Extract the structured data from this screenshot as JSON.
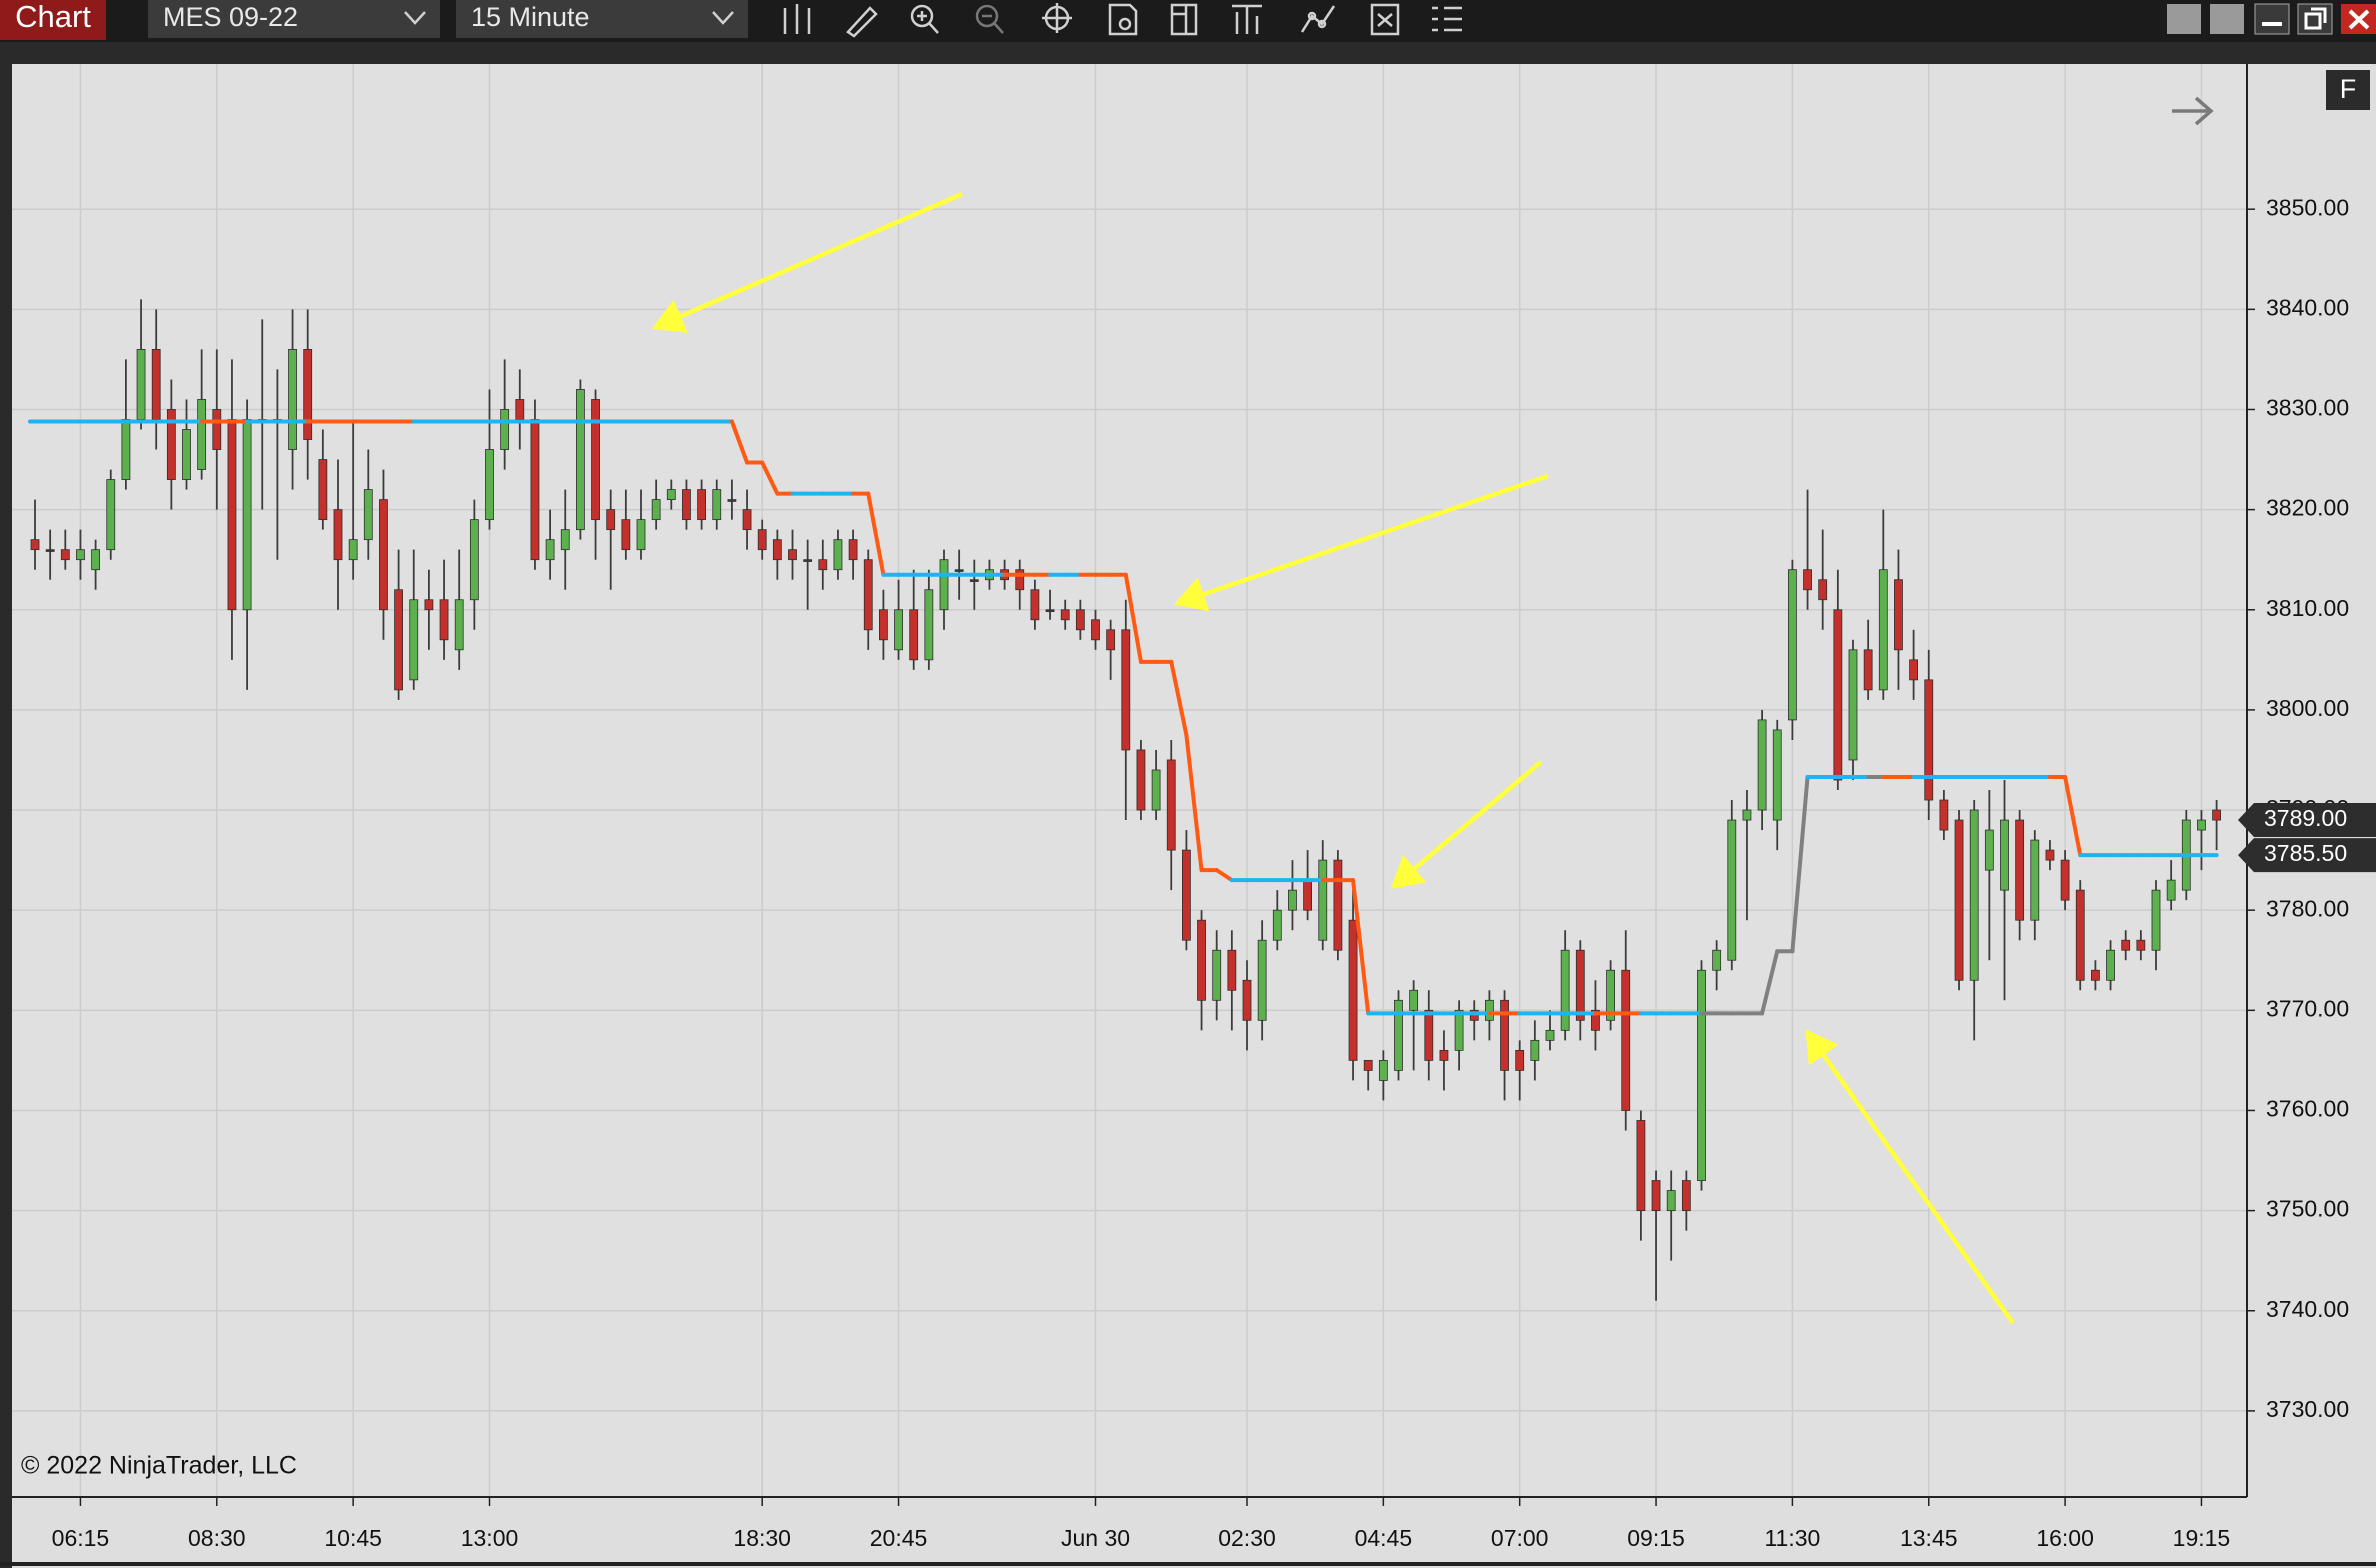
{
  "toolbar": {
    "tab": "Chart",
    "instrument": "MES 09-22",
    "interval": "15 Minute"
  },
  "controls": {
    "panel_button": "F"
  },
  "chart_data": {
    "type": "candlestick",
    "watermark": "© 2022 NinjaTrader, LLC",
    "up_color": "#5cb14e",
    "down_color": "#c4312c",
    "wick_color": "#3c3c3c",
    "grid": true,
    "ylim": [
      3721.4,
      3864.5
    ],
    "yticks": [
      {
        "value": 3730,
        "label": "3730.00"
      },
      {
        "value": 3740,
        "label": "3740.00"
      },
      {
        "value": 3750,
        "label": "3750.00"
      },
      {
        "value": 3760,
        "label": "3760.00"
      },
      {
        "value": 3770,
        "label": "3770.00"
      },
      {
        "value": 3780,
        "label": "3780.00"
      },
      {
        "value": 3790,
        "label": "3790.00"
      },
      {
        "value": 3800,
        "label": "3800.00"
      },
      {
        "value": 3810,
        "label": "3810.00"
      },
      {
        "value": 3820,
        "label": "3820.00"
      },
      {
        "value": 3830,
        "label": "3830.00"
      },
      {
        "value": 3840,
        "label": "3840.00"
      },
      {
        "value": 3850,
        "label": "3850.00"
      }
    ],
    "categories": [
      null,
      null,
      null,
      "06:15",
      null,
      null,
      null,
      null,
      null,
      null,
      null,
      null,
      "08:30",
      null,
      null,
      null,
      null,
      null,
      null,
      null,
      null,
      "10:45",
      null,
      null,
      null,
      null,
      null,
      null,
      null,
      null,
      "13:00",
      null,
      null,
      null,
      null,
      null,
      null,
      null,
      null,
      null,
      null,
      null,
      null,
      null,
      null,
      null,
      null,
      null,
      "18:30",
      null,
      null,
      null,
      null,
      null,
      null,
      null,
      null,
      "20:45",
      null,
      null,
      null,
      null,
      null,
      null,
      null,
      null,
      null,
      null,
      null,
      null,
      "Jun 30",
      null,
      null,
      null,
      null,
      null,
      null,
      null,
      null,
      null,
      "02:30",
      null,
      null,
      null,
      null,
      null,
      null,
      null,
      null,
      "04:45",
      null,
      null,
      null,
      null,
      null,
      null,
      null,
      null,
      "07:00",
      null,
      null,
      null,
      null,
      null,
      null,
      null,
      null,
      "09:15",
      null,
      null,
      null,
      null,
      null,
      null,
      null,
      null,
      "11:30",
      null,
      null,
      null,
      null,
      null,
      null,
      null,
      null,
      "13:45",
      null,
      null,
      null,
      null,
      null,
      null,
      null,
      null,
      "16:00",
      null,
      null,
      null,
      null,
      null,
      null,
      null,
      null,
      "19:15",
      null
    ],
    "open": [
      3817,
      3816,
      3816,
      3815,
      3814,
      3816,
      3823,
      3829,
      3836,
      3830,
      3823,
      3824,
      3830,
      3829,
      3810,
      3829,
      3829,
      3826,
      3836,
      3825,
      3820,
      3815,
      3817,
      3821,
      3812,
      3803,
      3811,
      3811,
      3806,
      3811,
      3819,
      3826,
      3831,
      3829,
      3815,
      3816,
      3818,
      3831,
      3820,
      3819,
      3816,
      3819,
      3821,
      3822,
      3822,
      3819,
      3821,
      3820,
      3818,
      3817,
      3816,
      3815,
      3815,
      3814,
      3817,
      3815,
      3810,
      3806,
      3810,
      3805,
      3810,
      3814,
      3813,
      3813,
      3814,
      3814,
      3812,
      3810,
      3810,
      3810,
      3809,
      3808,
      3808,
      3796,
      3790,
      3795,
      3786,
      3779,
      3771,
      3776,
      3773,
      3769,
      3777,
      3780,
      3783,
      3777,
      3785,
      3779,
      3765,
      3763,
      3764,
      3770,
      3770,
      3766,
      3766,
      3770,
      3769,
      3771,
      3766,
      3765,
      3767,
      3768,
      3776,
      3770,
      3769,
      3774,
      3759,
      3753,
      3750,
      3753,
      3753,
      3774,
      3775,
      3789,
      3790,
      3789,
      3799,
      3814,
      3813,
      3810,
      3795,
      3806,
      3802,
      3813,
      3805,
      3803,
      3791,
      3789,
      3773,
      3784,
      3782,
      3789,
      3779,
      3786,
      3785,
      3782,
      3774,
      3773,
      3777,
      3777,
      3776,
      3781,
      3782,
      3788,
      3790
    ],
    "high": [
      3821,
      3818,
      3818,
      3818,
      3817,
      3824,
      3835,
      3841,
      3840,
      3833,
      3831,
      3836,
      3836,
      3835,
      3831,
      3839,
      3834,
      3840,
      3840,
      3828,
      3825,
      3829,
      3826,
      3824,
      3816,
      3816,
      3814,
      3815,
      3816,
      3821,
      3832,
      3835,
      3834,
      3831,
      3820,
      3822,
      3833,
      3832,
      3822,
      3822,
      3822,
      3823,
      3823,
      3823,
      3823,
      3823,
      3823,
      3822,
      3819,
      3818,
      3818,
      3817,
      3817,
      3818,
      3818,
      3816,
      3812,
      3813,
      3814,
      3814,
      3816,
      3816,
      3815,
      3815,
      3815,
      3815,
      3813,
      3812,
      3811,
      3811,
      3810,
      3809,
      3811,
      3797,
      3796,
      3797,
      3788,
      3780,
      3778,
      3778,
      3775,
      3779,
      3782,
      3785,
      3786,
      3787,
      3786,
      3782,
      3765,
      3766,
      3772,
      3773,
      3772,
      3768,
      3771,
      3771,
      3772,
      3772,
      3767,
      3769,
      3770,
      3778,
      3777,
      3773,
      3775,
      3778,
      3760,
      3754,
      3754,
      3754,
      3775,
      3777,
      3791,
      3792,
      3800,
      3799,
      3815,
      3822,
      3818,
      3814,
      3807,
      3809,
      3820,
      3816,
      3808,
      3806,
      3792,
      3790,
      3791,
      3792,
      3793,
      3790,
      3788,
      3787,
      3786,
      3783,
      3775,
      3777,
      3778,
      3778,
      3783,
      3785,
      3790,
      3790,
      3791
    ],
    "low": [
      3814,
      3813,
      3814,
      3813,
      3812,
      3815,
      3822,
      3828,
      3826,
      3820,
      3822,
      3823,
      3820,
      3805,
      3802,
      3820,
      3815,
      3822,
      3823,
      3818,
      3810,
      3813,
      3815,
      3807,
      3801,
      3802,
      3806,
      3805,
      3804,
      3808,
      3818,
      3824,
      3826,
      3814,
      3813,
      3812,
      3817,
      3815,
      3812,
      3815,
      3815,
      3818,
      3820,
      3818,
      3818,
      3818,
      3819,
      3816,
      3815,
      3813,
      3813,
      3810,
      3812,
      3813,
      3813,
      3806,
      3805,
      3805,
      3804,
      3804,
      3808,
      3811,
      3810,
      3812,
      3812,
      3810,
      3808,
      3809,
      3808,
      3807,
      3806,
      3803,
      3789,
      3789,
      3789,
      3782,
      3776,
      3768,
      3769,
      3768,
      3766,
      3767,
      3776,
      3778,
      3779,
      3776,
      3775,
      3763,
      3762,
      3761,
      3763,
      3764,
      3763,
      3762,
      3764,
      3767,
      3767,
      3761,
      3761,
      3763,
      3766,
      3767,
      3767,
      3766,
      3768,
      3758,
      3747,
      3741,
      3745,
      3748,
      3752,
      3772,
      3774,
      3779,
      3788,
      3786,
      3797,
      3810,
      3808,
      3792,
      3793,
      3801,
      3801,
      3802,
      3801,
      3789,
      3787,
      3772,
      3767,
      3775,
      3771,
      3777,
      3777,
      3784,
      3780,
      3772,
      3772,
      3772,
      3775,
      3775,
      3774,
      3780,
      3781,
      3784,
      3786
    ],
    "close": [
      3816,
      3816,
      3815,
      3816,
      3816,
      3823,
      3829,
      3836,
      3829,
      3823,
      3828,
      3831,
      3826,
      3810,
      3829,
      3829,
      3829,
      3836,
      3827,
      3819,
      3815,
      3817,
      3822,
      3810,
      3802,
      3811,
      3810,
      3807,
      3811,
      3819,
      3826,
      3830,
      3829,
      3815,
      3817,
      3818,
      3832,
      3819,
      3818,
      3816,
      3819,
      3821,
      3822,
      3819,
      3819,
      3822,
      3821,
      3818,
      3816,
      3815,
      3815,
      3815,
      3814,
      3817,
      3815,
      3808,
      3807,
      3810,
      3805,
      3812,
      3815,
      3814,
      3813,
      3814,
      3813,
      3812,
      3809,
      3810,
      3809,
      3808,
      3807,
      3806,
      3796,
      3790,
      3794,
      3786,
      3777,
      3771,
      3776,
      3772,
      3769,
      3777,
      3780,
      3782,
      3780,
      3785,
      3776,
      3765,
      3764,
      3765,
      3771,
      3772,
      3765,
      3765,
      3770,
      3769,
      3771,
      3764,
      3764,
      3767,
      3768,
      3776,
      3769,
      3768,
      3774,
      3760,
      3750,
      3750,
      3752,
      3750,
      3774,
      3776,
      3789,
      3790,
      3799,
      3798,
      3814,
      3812,
      3811,
      3793,
      3806,
      3802,
      3814,
      3806,
      3803,
      3791,
      3788,
      3773,
      3790,
      3788,
      3789,
      3779,
      3787,
      3785,
      3781,
      3773,
      3773,
      3776,
      3776,
      3776,
      3782,
      3783,
      3789,
      3789,
      3789
    ],
    "indicator": {
      "values": [
        3828.8,
        3828.8,
        3828.8,
        3828.8,
        3828.8,
        3828.8,
        3828.8,
        3828.8,
        3828.8,
        3828.8,
        3828.8,
        3828.8,
        3828.8,
        3828.8,
        3828.8,
        3828.8,
        3828.8,
        3828.8,
        3828.8,
        3828.8,
        3828.8,
        3828.8,
        3828.8,
        3828.8,
        3828.8,
        3828.8,
        3828.8,
        3828.8,
        3828.8,
        3828.8,
        3828.8,
        3828.8,
        3828.8,
        3828.8,
        3828.8,
        3828.8,
        3828.8,
        3828.8,
        3828.8,
        3828.8,
        3828.8,
        3828.8,
        3828.8,
        3828.8,
        3828.8,
        3828.8,
        3828.8,
        3824.7,
        3824.7,
        3821.6,
        3821.6,
        3821.6,
        3821.6,
        3821.6,
        3821.6,
        3821.6,
        3813.5,
        3813.5,
        3813.5,
        3813.5,
        3813.5,
        3813.5,
        3813.5,
        3813.5,
        3813.5,
        3813.5,
        3813.5,
        3813.5,
        3813.5,
        3813.5,
        3813.5,
        3813.5,
        3813.5,
        3804.8,
        3804.8,
        3804.8,
        3797.5,
        3784,
        3784,
        3783,
        3783,
        3783,
        3783,
        3783,
        3783,
        3783,
        3783,
        3783,
        3769.7,
        3769.7,
        3769.7,
        3769.7,
        3769.7,
        3769.7,
        3769.7,
        3769.7,
        3769.7,
        3769.7,
        3769.7,
        3769.7,
        3769.7,
        3769.7,
        3769.7,
        3769.7,
        3769.7,
        3769.7,
        3769.7,
        3769.7,
        3769.7,
        3769.7,
        3769.7,
        3769.7,
        3769.7,
        3769.7,
        3769.7,
        3775.9,
        3775.9,
        3793.3,
        3793.3,
        3793.3,
        3793.3,
        3793.3,
        3793.3,
        3793.3,
        3793.3,
        3793.3,
        3793.3,
        3793.3,
        3793.3,
        3793.3,
        3793.3,
        3793.3,
        3793.3,
        3793.3,
        3793.3,
        3785.5,
        3785.5,
        3785.5,
        3785.5,
        3785.5,
        3785.5,
        3785.5,
        3785.5,
        3785.5,
        3785.5
      ],
      "colors": [
        "#1eb4f0",
        "#1eb4f0",
        "#1eb4f0",
        "#1eb4f0",
        "#1eb4f0",
        "#1eb4f0",
        "#1eb4f0",
        "#1eb4f0",
        "#1eb4f0",
        "#1eb4f0",
        "#1eb4f0",
        "#1eb4f0",
        "#ff5a14",
        "#ff5a14",
        "#ff5a14",
        "#1eb4f0",
        "#1eb4f0",
        "#1eb4f0",
        "#1eb4f0",
        "#ff5a14",
        "#ff5a14",
        "#ff5a14",
        "#ff5a14",
        "#ff5a14",
        "#ff5a14",
        "#ff5a14",
        "#1eb4f0",
        "#1eb4f0",
        "#1eb4f0",
        "#1eb4f0",
        "#1eb4f0",
        "#1eb4f0",
        "#1eb4f0",
        "#1eb4f0",
        "#1eb4f0",
        "#1eb4f0",
        "#1eb4f0",
        "#1eb4f0",
        "#1eb4f0",
        "#1eb4f0",
        "#1eb4f0",
        "#1eb4f0",
        "#1eb4f0",
        "#1eb4f0",
        "#1eb4f0",
        "#1eb4f0",
        "#1eb4f0",
        "#ff5a14",
        "#ff5a14",
        "#ff5a14",
        "#ff5a14",
        "#1eb4f0",
        "#1eb4f0",
        "#1eb4f0",
        "#1eb4f0",
        "#ff5a14",
        "#ff5a14",
        "#1eb4f0",
        "#1eb4f0",
        "#1eb4f0",
        "#1eb4f0",
        "#1eb4f0",
        "#1eb4f0",
        "#1eb4f0",
        "#1eb4f0",
        "#ff5a14",
        "#ff5a14",
        "#ff5a14",
        "#1eb4f0",
        "#1eb4f0",
        "#ff5a14",
        "#ff5a14",
        "#ff5a14",
        "#ff5a14",
        "#ff5a14",
        "#ff5a14",
        "#ff5a14",
        "#ff5a14",
        "#ff5a14",
        "#ff5a14",
        "#1eb4f0",
        "#1eb4f0",
        "#1eb4f0",
        "#1eb4f0",
        "#1eb4f0",
        "#1eb4f0",
        "#ff5a14",
        "#ff5a14",
        "#ff5a14",
        "#1eb4f0",
        "#1eb4f0",
        "#1eb4f0",
        "#1eb4f0",
        "#1eb4f0",
        "#1eb4f0",
        "#1eb4f0",
        "#1eb4f0",
        "#ff5a14",
        "#ff5a14",
        "#1eb4f0",
        "#1eb4f0",
        "#1eb4f0",
        "#1eb4f0",
        "#1eb4f0",
        "#ff5a14",
        "#ff5a14",
        "#ff5a14",
        "#1eb4f0",
        "#1eb4f0",
        "#1eb4f0",
        "#1eb4f0",
        "#808080",
        "#808080",
        "#808080",
        "#808080",
        "#808080",
        "#808080",
        "#808080",
        "#1eb4f0",
        "#1eb4f0",
        "#1eb4f0",
        "#1eb4f0",
        "#808080",
        "#ff5a14",
        "#ff5a14",
        "#1eb4f0",
        "#1eb4f0",
        "#1eb4f0",
        "#1eb4f0",
        "#1eb4f0",
        "#1eb4f0",
        "#1eb4f0",
        "#1eb4f0",
        "#1eb4f0",
        "#ff5a14",
        "#ff5a14",
        "#1eb4f0",
        "#1eb4f0",
        "#1eb4f0",
        "#1eb4f0",
        "#1eb4f0",
        "#1eb4f0",
        "#1eb4f0",
        "#1eb4f0",
        "#1eb4f0"
      ]
    },
    "price_markers": [
      {
        "value": 3789,
        "label": "3789.00"
      },
      {
        "value": 3785.5,
        "label": "3785.50"
      }
    ]
  }
}
